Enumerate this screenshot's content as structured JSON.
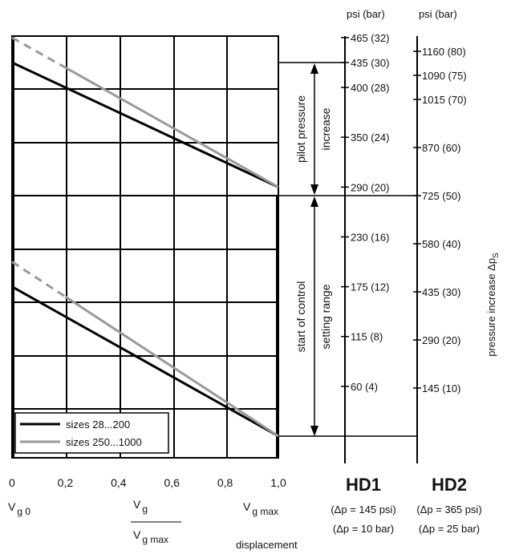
{
  "chart_data": {
    "type": "line",
    "title": "",
    "x_axis": {
      "ticks": [
        "0",
        "0,2",
        "0,4",
        "0,6",
        "0,8",
        "1,0"
      ],
      "range": [
        0,
        1
      ],
      "labels": {
        "vg0": "V",
        "vg0_sub": "g 0",
        "ratio_num": "V",
        "ratio_num_sub": "g",
        "ratio_den": "V",
        "ratio_den_sub": "g max",
        "vgmax": "V",
        "vgmax_sub": "g max",
        "caption": "displacement"
      }
    },
    "hd1_axis": {
      "header": "psi (bar)",
      "title": "HD1",
      "note1": "(Δp = 145 psi)",
      "note2": "(Δp = 10 bar)",
      "ticks": [
        {
          "label": "465 (32)",
          "value": 32
        },
        {
          "label": "435 (30)",
          "value": 30
        },
        {
          "label": "400 (28)",
          "value": 28
        },
        {
          "label": "350 (24)",
          "value": 24
        },
        {
          "label": "290 (20)",
          "value": 20
        },
        {
          "label": "230 (16)",
          "value": 16
        },
        {
          "label": "175 (12)",
          "value": 12
        },
        {
          "label": "115 (8)",
          "value": 8
        },
        {
          "label": "60 (4)",
          "value": 4
        }
      ]
    },
    "hd2_axis": {
      "header": "psi (bar)",
      "title": "HD2",
      "note1": "(Δp = 365 psi)",
      "note2": "(Δp = 25 bar)",
      "ticks": [
        {
          "label": "1160 (80)",
          "value": 80
        },
        {
          "label": "1090 (75)",
          "value": 75
        },
        {
          "label": "1015 (70)",
          "value": 70
        },
        {
          "label": "870 (60)",
          "value": 60
        },
        {
          "label": "725 (50)",
          "value": 50
        },
        {
          "label": "580 (40)",
          "value": 40
        },
        {
          "label": "435 (30)",
          "value": 30
        },
        {
          "label": "290 (20)",
          "value": 20
        },
        {
          "label": "145 (10)",
          "value": 10
        }
      ]
    },
    "ylabel": "pressure increase Δp",
    "ylabel_sub": "S",
    "annotations": {
      "pilot_line1": "pilot pressure",
      "pilot_line2": "increase",
      "start_line1": "start of control",
      "start_line2": "setting range"
    },
    "legend": {
      "placement": "bottom-left",
      "items": [
        {
          "label": "sizes 28...200",
          "color": "#000000"
        },
        {
          "label": "sizes 250...1000",
          "color": "#999999"
        }
      ]
    },
    "series": [
      {
        "name": "sizes 28...200",
        "color": "#000000",
        "points": [
          [
            0,
            30
          ],
          [
            1,
            20
          ]
        ]
      },
      {
        "name": "sizes 28...200",
        "color": "#000000",
        "points": [
          [
            0,
            12
          ],
          [
            1,
            0
          ]
        ]
      },
      {
        "name": "sizes 250...1000",
        "color": "#999999",
        "points": [
          [
            0,
            32
          ],
          [
            1,
            20
          ]
        ],
        "dashed_until": 0.2
      },
      {
        "name": "sizes 250...1000",
        "color": "#999999",
        "points": [
          [
            0,
            14
          ],
          [
            1,
            0
          ]
        ],
        "dashed_until": 0.2
      }
    ]
  }
}
